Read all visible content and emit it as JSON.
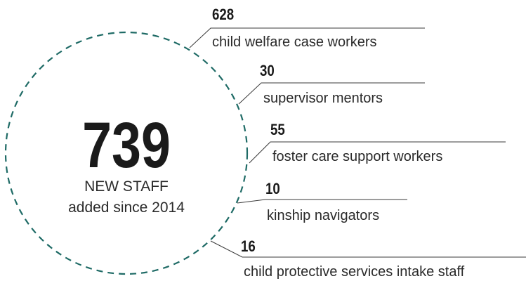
{
  "total": {
    "number": 739,
    "line1": "NEW STAFF",
    "line2": "added since 2014"
  },
  "items": [
    {
      "number": 628,
      "label": "child welfare case workers"
    },
    {
      "number": 30,
      "label": "supervisor mentors"
    },
    {
      "number": 55,
      "label": "foster care support workers"
    },
    {
      "number": 10,
      "label": "kinship navigators"
    },
    {
      "number": 16,
      "label": "child protective services intake staff"
    }
  ]
}
